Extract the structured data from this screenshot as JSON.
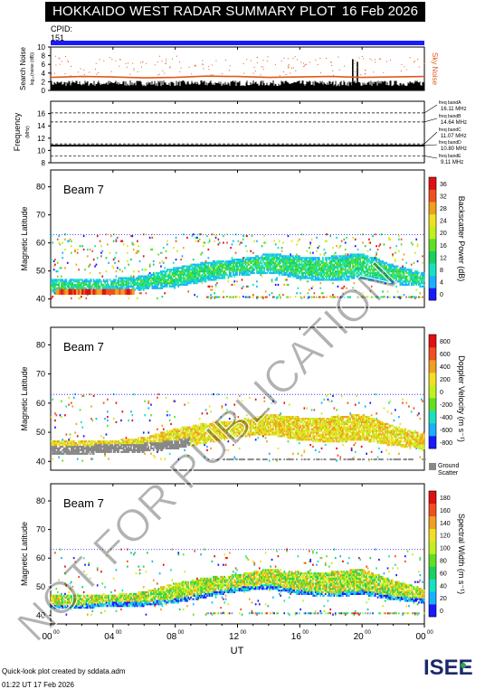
{
  "header": {
    "title": "HOKKAIDO WEST RADAR SUMMARY PLOT",
    "date": "16 Feb 2026",
    "cpid_label": "CPID:",
    "cpid_value": "151"
  },
  "colors": {
    "cpid_bar": "#1a1aff",
    "noise_sky": "#e05a1a",
    "noise_search": "#000000",
    "ground_scatter": "#888888"
  },
  "watermark": "NOT FOR PUBLICATION",
  "footer": {
    "credit": "Quick-look plot created by sddata.adm",
    "time": "01:22 UT 17 Feb 2026",
    "logo_text": "ISEE"
  },
  "chart_data": [
    {
      "type": "line",
      "panel": "noise",
      "ylabel": "Search Noise",
      "ylabel_sub": "log₁₀(noise (dB))",
      "right_label": "Sky Noise",
      "ylim": [
        0,
        10
      ],
      "yticks": [
        0,
        2,
        4,
        6,
        8,
        10
      ],
      "x": [
        0,
        2,
        4,
        6,
        8,
        10,
        12,
        14,
        16,
        18,
        20,
        22,
        24
      ],
      "series": [
        {
          "values": [
            3.0,
            3.2,
            3.1,
            2.9,
            3.0,
            3.3,
            3.2,
            3.0,
            3.1,
            3.2,
            3.0,
            3.1,
            3.2
          ]
        },
        {
          "values": [
            1.0,
            1.0,
            1.0,
            1.0,
            1.0,
            1.0,
            1.0,
            1.0,
            1.0,
            1.0,
            1.0,
            1.0,
            1.0
          ]
        }
      ]
    },
    {
      "type": "line",
      "panel": "frequency",
      "ylabel": "Frequency",
      "ylabel_sub": "(MHz)",
      "ylim": [
        8,
        18
      ],
      "yticks": [
        8,
        10,
        12,
        14,
        16
      ],
      "band_lines": [
        9.11,
        10.8,
        11.07,
        14.64,
        16.11
      ],
      "series": [
        {
          "name": "freq bandA 16.11 MHz",
          "values": []
        },
        {
          "name": "freq bandB 14.64 MHz",
          "values": []
        },
        {
          "name": "freq bandC 11.07 MHz",
          "values": []
        },
        {
          "name": "freq bandD 10.80 MHz",
          "values": [
            10.8
          ]
        },
        {
          "name": "freq bandE 9.11 MHz",
          "values": []
        }
      ]
    },
    {
      "type": "heatmap",
      "panel": "power",
      "beam_label": "Beam  7",
      "ylabel": "Magnetic Latitude",
      "ylim": [
        37,
        86
      ],
      "yticks": [
        40,
        50,
        60,
        70,
        80
      ],
      "colorbar_label": "Backscatter Power (dB)",
      "colorbar_ticks": [
        0,
        4,
        8,
        12,
        16,
        20,
        24,
        28,
        32,
        36
      ],
      "colorbar_colors": [
        "#1a1aff",
        "#1ab0ff",
        "#1ae0c0",
        "#1ad060",
        "#60e020",
        "#c0f020",
        "#f0e020",
        "#f0a020",
        "#f05020",
        "#e01010"
      ],
      "region_edges_x": [
        0,
        2,
        4,
        6,
        8,
        10,
        12,
        14,
        16,
        18,
        20,
        22,
        24
      ],
      "region_lower_lat": [
        42,
        42,
        43,
        43,
        44,
        46,
        48,
        49,
        47,
        46,
        47,
        45,
        44
      ],
      "region_upper_lat": [
        47,
        47,
        47,
        48,
        51,
        53,
        54,
        56,
        55,
        55,
        56,
        52,
        49
      ]
    },
    {
      "type": "heatmap",
      "panel": "velocity",
      "beam_label": "Beam  7",
      "ylabel": "Magnetic Latitude",
      "ylim": [
        37,
        86
      ],
      "yticks": [
        40,
        50,
        60,
        70,
        80
      ],
      "colorbar_label": "Doppler Velocity (m s⁻¹)",
      "colorbar_ticks": [
        800,
        600,
        400,
        200,
        0,
        -200,
        -400,
        -600,
        -800
      ],
      "colorbar_colors": [
        "#1a1aff",
        "#1ab0ff",
        "#1ae0c0",
        "#60e020",
        "#c0f020",
        "#f0e020",
        "#f0a020",
        "#f05020",
        "#e01010"
      ],
      "ground_scatter_label": "Ground Scatter"
    },
    {
      "type": "heatmap",
      "panel": "width",
      "beam_label": "Beam  7",
      "ylabel": "Magnetic Latitude",
      "ylim": [
        37,
        86
      ],
      "yticks": [
        40,
        50,
        60,
        70,
        80
      ],
      "colorbar_label": "Spectral Width (m s⁻¹)",
      "colorbar_ticks": [
        0,
        20,
        40,
        60,
        80,
        100,
        120,
        140,
        160,
        180
      ],
      "colorbar_colors": [
        "#1a1aff",
        "#1ab0ff",
        "#1ae0c0",
        "#1ad060",
        "#60e020",
        "#c0f020",
        "#f0e020",
        "#f0a020",
        "#f05020",
        "#e01010"
      ]
    }
  ],
  "x_axis": {
    "label": "UT",
    "ticks": [
      "00",
      "04",
      "08",
      "12",
      "16",
      "20",
      "00"
    ],
    "tick_superscript": "00"
  }
}
